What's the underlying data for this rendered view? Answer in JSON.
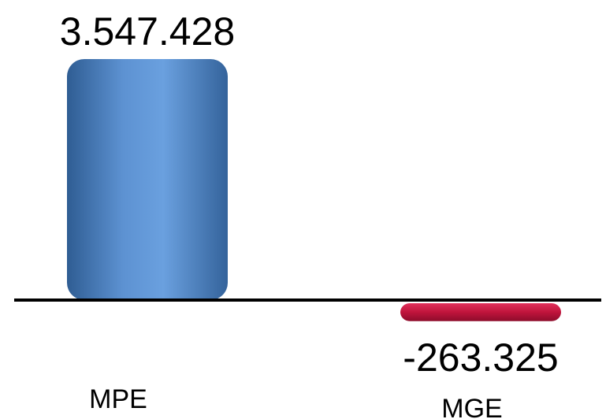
{
  "chart_data": {
    "type": "bar",
    "categories": [
      "MPE",
      "MGE"
    ],
    "values": [
      3547428,
      -263325
    ],
    "value_labels": [
      "3.547.428",
      "-263.325"
    ],
    "colors": [
      "#4f81bd",
      "#c0143c"
    ],
    "grid": false,
    "legend": "none",
    "ylim": [
      -620000,
      3547428
    ]
  }
}
